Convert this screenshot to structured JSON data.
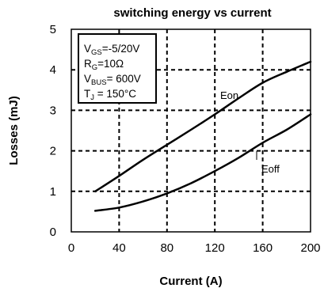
{
  "chart_data": {
    "type": "line",
    "title": "switching energy vs current",
    "xlabel": "Current (A)",
    "ylabel": "Losses (mJ)",
    "xlim": [
      0,
      200
    ],
    "ylim": [
      0,
      5
    ],
    "xticks": [
      "0",
      "40",
      "80",
      "120",
      "160",
      "200"
    ],
    "yticks": [
      "0",
      "1",
      "2",
      "3",
      "4",
      "5"
    ],
    "grid": "dashed",
    "series": [
      {
        "name": "Eon",
        "color": "#000000",
        "x": [
          20,
          40,
          60,
          80,
          100,
          120,
          140,
          160,
          180,
          200
        ],
        "y": [
          1.0,
          1.38,
          1.78,
          2.15,
          2.52,
          2.9,
          3.3,
          3.68,
          3.95,
          4.2
        ]
      },
      {
        "name": "Eoff",
        "color": "#000000",
        "x": [
          20,
          40,
          60,
          80,
          100,
          120,
          140,
          160,
          180,
          200
        ],
        "y": [
          0.52,
          0.6,
          0.75,
          0.95,
          1.2,
          1.5,
          1.83,
          2.2,
          2.52,
          2.9
        ]
      }
    ],
    "annotations": {
      "box": {
        "vgs": {
          "main": "V",
          "sub": "GS",
          "rest": "=-5/20V"
        },
        "rg": {
          "main": "R",
          "sub": "G",
          "rest": "=10Ω"
        },
        "vbus": {
          "main": "V",
          "sub": "BUS",
          "rest": "= 600V"
        },
        "tj": {
          "main": "T",
          "sub": "J",
          "rest": " = 150°C"
        }
      }
    }
  }
}
